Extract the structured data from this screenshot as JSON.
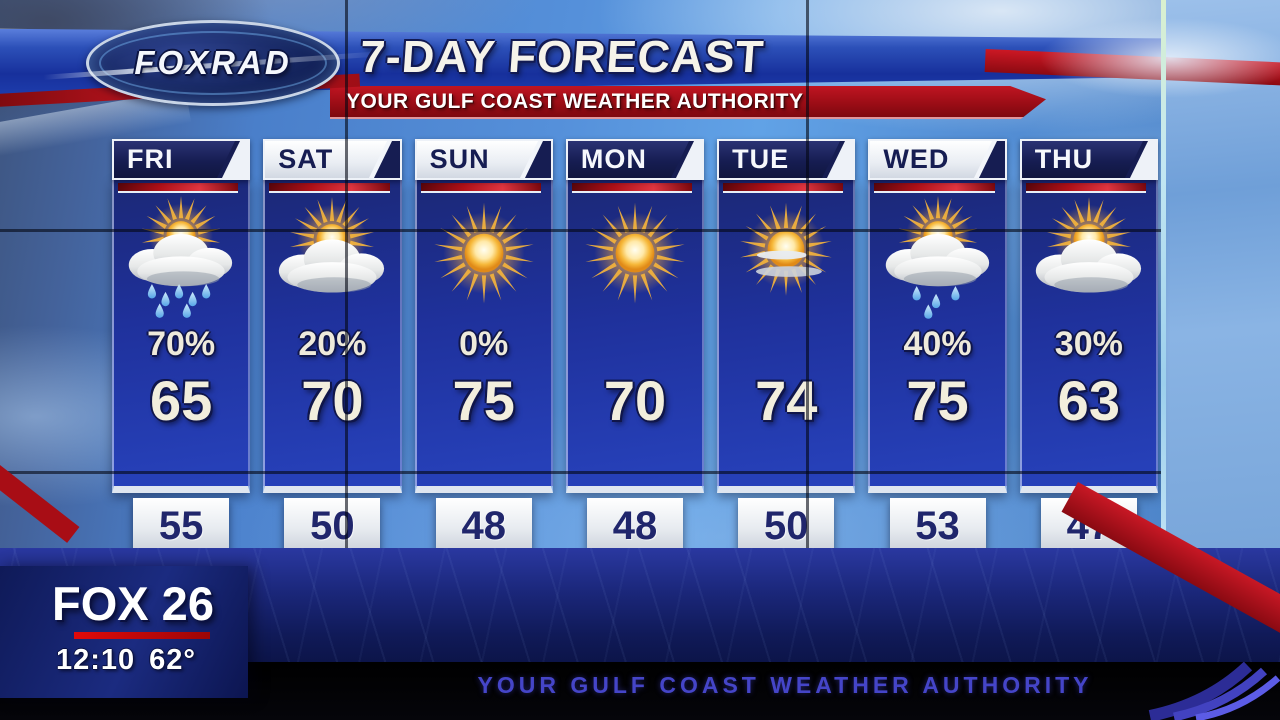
{
  "header": {
    "brand": "FOXRAD",
    "title": "7-DAY FORECAST",
    "subtitle": "YOUR GULF COAST WEATHER AUTHORITY"
  },
  "days": [
    {
      "label": "FRI",
      "tab": "dark",
      "icon": "sun-cloud-rain",
      "pop": "70%",
      "high": "65",
      "low": "55"
    },
    {
      "label": "SAT",
      "tab": "light",
      "icon": "sun-cloud",
      "pop": "20%",
      "high": "70",
      "low": "50"
    },
    {
      "label": "SUN",
      "tab": "light",
      "icon": "sunny",
      "pop": "0%",
      "high": "75",
      "low": "48"
    },
    {
      "label": "MON",
      "tab": "dark",
      "icon": "sunny",
      "pop": "",
      "high": "70",
      "low": "48"
    },
    {
      "label": "TUE",
      "tab": "dark",
      "icon": "mostly-sunny",
      "pop": "",
      "high": "74",
      "low": "50"
    },
    {
      "label": "WED",
      "tab": "light",
      "icon": "sun-cloud-light-rain",
      "pop": "40%",
      "high": "75",
      "low": "53"
    },
    {
      "label": "THU",
      "tab": "dark",
      "icon": "sun-cloud",
      "pop": "30%",
      "high": "63",
      "low": "47"
    }
  ],
  "station": {
    "logo": "FOX 26",
    "time": "12:10",
    "temp": "62°"
  },
  "footer": {
    "tagline": "YOUR GULF COAST WEATHER AUTHORITY"
  },
  "colors": {
    "accent_red": "#c01522",
    "panel_blue": "#1f319c",
    "tab_navy": "#161d52",
    "tagline_purple": "#4545c8",
    "number_cream": "#f2eedd"
  },
  "chart_data": {
    "type": "table",
    "title": "7-DAY FORECAST",
    "subtitle": "YOUR GULF COAST WEATHER AUTHORITY",
    "columns": [
      "day",
      "precip_chance",
      "high_f",
      "low_f",
      "condition_icon"
    ],
    "rows": [
      [
        "FRI",
        "70%",
        65,
        55,
        "sun-cloud-rain"
      ],
      [
        "SAT",
        "20%",
        70,
        50,
        "sun-cloud"
      ],
      [
        "SUN",
        "0%",
        75,
        48,
        "sunny"
      ],
      [
        "MON",
        null,
        70,
        48,
        "sunny"
      ],
      [
        "TUE",
        null,
        74,
        50,
        "mostly-sunny"
      ],
      [
        "WED",
        "40%",
        75,
        53,
        "sun-cloud-light-rain"
      ],
      [
        "THU",
        "30%",
        63,
        47,
        "sun-cloud"
      ]
    ]
  }
}
